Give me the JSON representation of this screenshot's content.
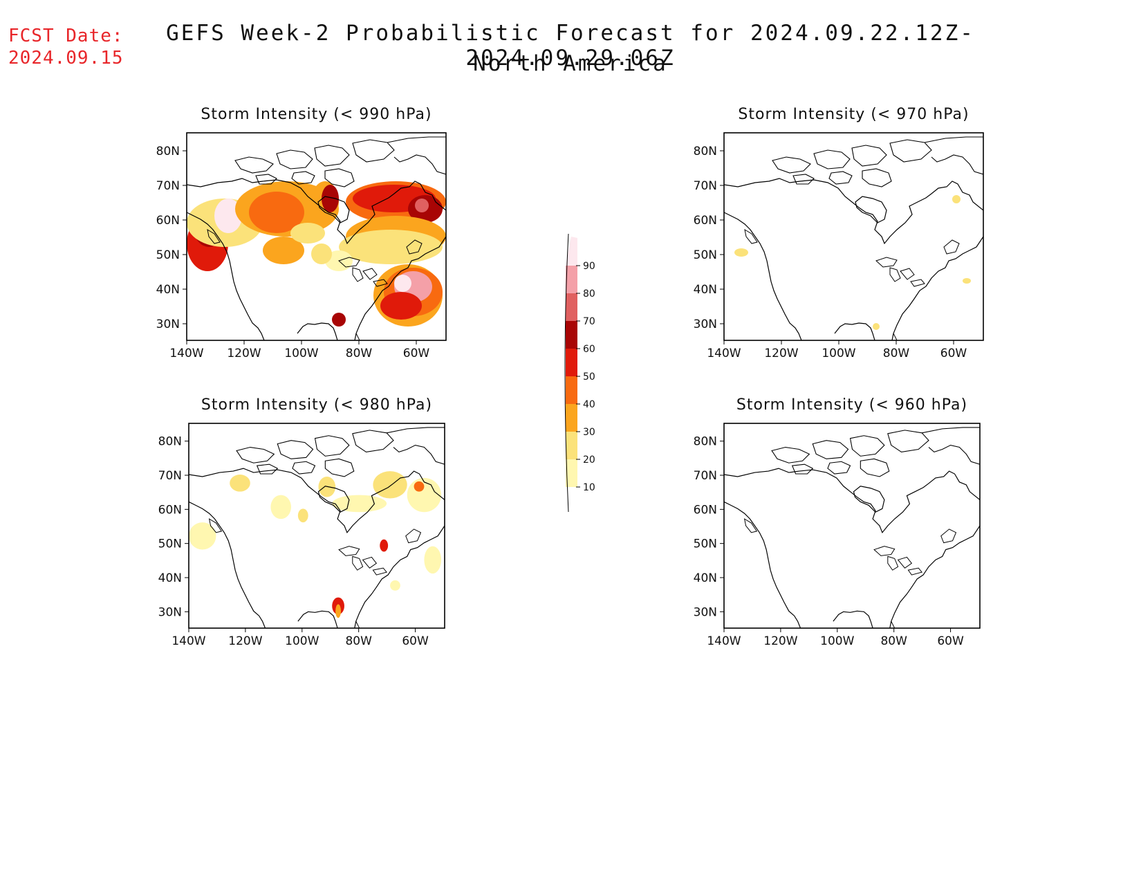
{
  "fcst_label": "FCST Date:",
  "fcst_date": "2024.09.15",
  "title": "GEFS Week-2 Probabilistic Forecast for 2024.09.22.12Z-2024.09.29.06Z",
  "subtitle": "North America",
  "lat_labels": [
    "80N",
    "70N",
    "60N",
    "50N",
    "40N",
    "30N"
  ],
  "lon_labels": [
    "140W",
    "120W",
    "100W",
    "80W",
    "60W"
  ],
  "panels": [
    {
      "id": "p990",
      "title": "Storm Intensity (< 990 hPa)"
    },
    {
      "id": "p970",
      "title": "Storm Intensity (< 970 hPa)"
    },
    {
      "id": "p980",
      "title": "Storm Intensity (< 980 hPa)"
    },
    {
      "id": "p960",
      "title": "Storm Intensity (< 960 hPa)"
    }
  ],
  "colorbar": {
    "levels": [
      "10",
      "20",
      "30",
      "40",
      "50",
      "60",
      "70",
      "80",
      "90"
    ],
    "colors": [
      "#fff7b0",
      "#fbe27a",
      "#fba51e",
      "#f86a10",
      "#e01a0a",
      "#a80505",
      "#e06060",
      "#f4a0a8",
      "#fde8ee"
    ]
  }
}
